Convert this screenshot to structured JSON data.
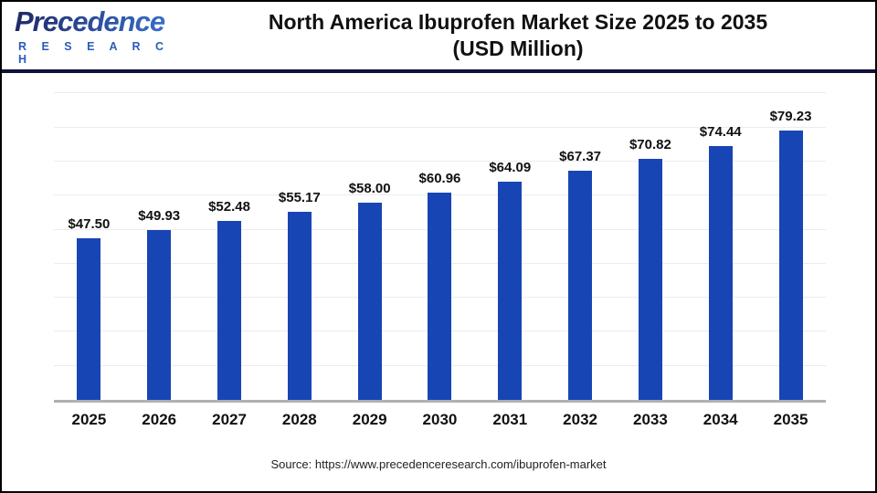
{
  "logo": {
    "brand": "Precedence",
    "sub": "R E S E A R C H"
  },
  "header": {
    "title_line1": "North America Ibuprofen Market Size 2025 to 2035",
    "title_line2": "(USD Million)"
  },
  "chart_data": {
    "type": "bar",
    "title": "North America Ibuprofen Market Size 2025 to 2035 (USD Million)",
    "unit": "USD Million",
    "categories": [
      "2025",
      "2026",
      "2027",
      "2028",
      "2029",
      "2030",
      "2031",
      "2032",
      "2033",
      "2034",
      "2035"
    ],
    "values": [
      47.5,
      49.93,
      52.48,
      55.17,
      58.0,
      60.96,
      64.09,
      67.37,
      70.82,
      74.44,
      79.23
    ],
    "value_labels": [
      "$47.50",
      "$49.93",
      "$52.48",
      "$55.17",
      "$58.00",
      "$60.96",
      "$64.09",
      "$67.37",
      "$70.82",
      "$74.44",
      "$79.23"
    ],
    "xlabel": "",
    "ylabel": "",
    "ylim": [
      0,
      92
    ],
    "gridline_step": 10,
    "grid": "horizontal-light",
    "legend": "none"
  },
  "footer": {
    "source": "Source: https://www.precedenceresearch.com/ibuprofen-market"
  },
  "colors": {
    "bar": "#1745b4",
    "gridline": "#ececec",
    "axis_line": "#b0b0b0",
    "header_divider": "#10103a",
    "logo_gradient_start": "#1d2a66",
    "logo_gradient_end": "#3d78d8",
    "logo_sub": "#2a5cb8",
    "text": "#111111"
  }
}
